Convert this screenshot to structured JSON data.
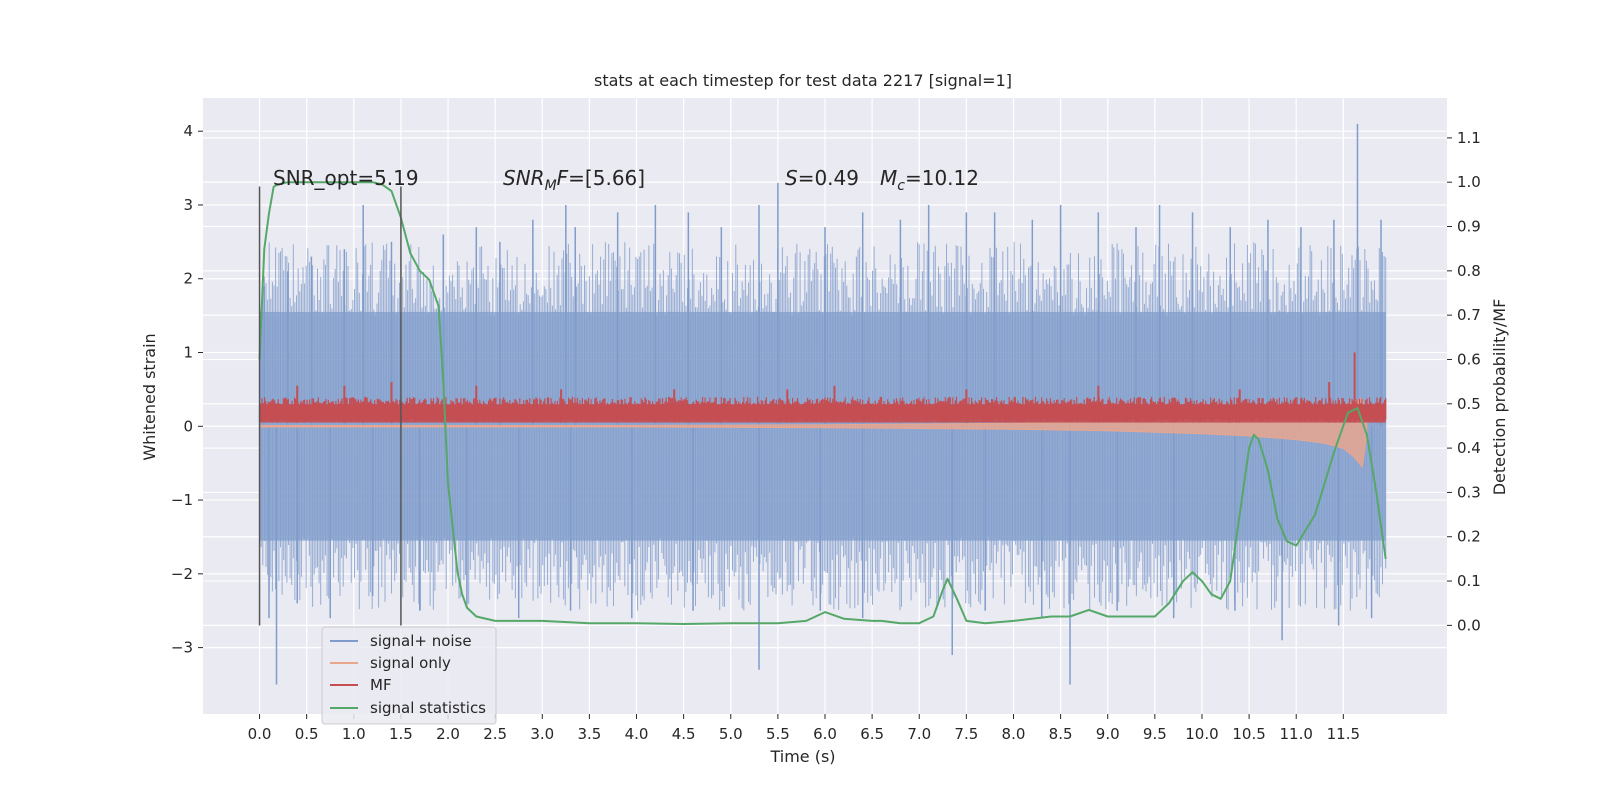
{
  "chart_data": {
    "type": "line",
    "title": "stats at each timestep for test data 2217 [signal=1]",
    "xlabel": "Time (s)",
    "ylabel_left": "Whitened strain",
    "ylabel_right": "Detection probability/MF",
    "xlim": [
      -0.6,
      12.6
    ],
    "ylim_left": [
      -3.9,
      4.45
    ],
    "ylim_right": [
      -0.2,
      1.19
    ],
    "x_ticks": [
      0.0,
      0.5,
      1.0,
      1.5,
      2.0,
      2.5,
      3.0,
      3.5,
      4.0,
      4.5,
      5.0,
      5.5,
      6.0,
      6.5,
      7.0,
      7.5,
      8.0,
      8.5,
      9.0,
      9.5,
      10.0,
      10.5,
      11.0,
      11.5
    ],
    "x_tick_labels": [
      "0.0",
      "0.5",
      "1.0",
      "1.5",
      "2.0",
      "2.5",
      "3.0",
      "3.5",
      "4.0",
      "4.5",
      "5.0",
      "5.5",
      "6.0",
      "6.5",
      "7.0",
      "7.5",
      "8.0",
      "8.5",
      "9.0",
      "9.5",
      "10.0",
      "10.5",
      "11.0",
      "11.5"
    ],
    "y_ticks_left": [
      -3,
      -2,
      -1,
      0,
      1,
      2,
      3,
      4
    ],
    "y_tick_labels_left": [
      "−3",
      "−2",
      "−1",
      "0",
      "1",
      "2",
      "3",
      "4"
    ],
    "y_ticks_right": [
      0.0,
      0.1,
      0.2,
      0.3,
      0.4,
      0.5,
      0.6,
      0.7,
      0.8,
      0.9,
      1.0,
      1.1
    ],
    "y_tick_labels_right": [
      "0.0",
      "0.1",
      "0.2",
      "0.3",
      "0.4",
      "0.5",
      "0.6",
      "0.7",
      "0.8",
      "0.9",
      "1.0",
      "1.1"
    ],
    "grid": true,
    "legend_placement": "lower-left",
    "annotations": {
      "snr_opt": "SNR_opt=5.19",
      "snr_mf_main": "SNR",
      "snr_mf_sub": "M",
      "snr_mf_rest": "F=[5.66]",
      "s_main": "S",
      "s_rest": "=0.49",
      "mc_main": "M",
      "mc_sub": "c",
      "mc_rest": "=10.12"
    },
    "vertical_markers": [
      0.0,
      1.5
    ],
    "series": [
      {
        "name": "signal+ noise",
        "color": "#7f9ccb",
        "axis": "left",
        "band_x": [
          0.0,
          11.95
        ],
        "band_low": -1.55,
        "band_high": 1.55,
        "spikes_up": [
          [
            0.05,
            1.9
          ],
          [
            0.3,
            2.1
          ],
          [
            0.55,
            2.3
          ],
          [
            0.9,
            2.4
          ],
          [
            1.1,
            3.0
          ],
          [
            1.4,
            2.5
          ],
          [
            1.95,
            2.6
          ],
          [
            2.3,
            2.7
          ],
          [
            2.55,
            2.5
          ],
          [
            2.9,
            2.8
          ],
          [
            3.25,
            3.0
          ],
          [
            3.35,
            2.7
          ],
          [
            3.8,
            2.9
          ],
          [
            4.2,
            3.0
          ],
          [
            4.55,
            2.9
          ],
          [
            4.9,
            2.7
          ],
          [
            5.3,
            3.0
          ],
          [
            5.5,
            3.3
          ],
          [
            6.0,
            2.7
          ],
          [
            6.4,
            2.9
          ],
          [
            6.8,
            2.8
          ],
          [
            7.1,
            3.0
          ],
          [
            7.5,
            2.9
          ],
          [
            7.8,
            2.9
          ],
          [
            8.2,
            2.8
          ],
          [
            8.5,
            3.0
          ],
          [
            8.9,
            2.9
          ],
          [
            9.3,
            2.7
          ],
          [
            9.55,
            3.0
          ],
          [
            9.9,
            2.9
          ],
          [
            10.3,
            2.7
          ],
          [
            10.7,
            2.8
          ],
          [
            11.05,
            2.7
          ],
          [
            11.4,
            2.8
          ],
          [
            11.65,
            4.1
          ],
          [
            11.9,
            2.8
          ]
        ],
        "spikes_down": [
          [
            0.1,
            -2.6
          ],
          [
            0.18,
            -3.5
          ],
          [
            0.4,
            -2.4
          ],
          [
            0.75,
            -2.6
          ],
          [
            1.2,
            -2.3
          ],
          [
            1.7,
            -2.5
          ],
          [
            2.2,
            -2.4
          ],
          [
            2.75,
            -2.6
          ],
          [
            3.3,
            -2.5
          ],
          [
            3.95,
            -2.6
          ],
          [
            4.6,
            -2.5
          ],
          [
            5.3,
            -3.3
          ],
          [
            5.95,
            -2.5
          ],
          [
            6.4,
            -2.6
          ],
          [
            7.35,
            -3.1
          ],
          [
            7.7,
            -2.5
          ],
          [
            8.3,
            -2.6
          ],
          [
            8.6,
            -3.5
          ],
          [
            9.1,
            -2.5
          ],
          [
            9.7,
            -2.6
          ],
          [
            10.35,
            -2.5
          ],
          [
            10.85,
            -2.9
          ],
          [
            11.45,
            -2.7
          ],
          [
            11.8,
            -2.6
          ]
        ]
      },
      {
        "name": "signal only",
        "color": "#e8a68f",
        "axis": "left",
        "x": [
          0.0,
          2.0,
          4.0,
          6.0,
          8.0,
          9.0,
          10.0,
          10.5,
          11.0,
          11.3,
          11.5,
          11.6,
          11.7,
          11.75
        ],
        "upper": [
          0.01,
          0.01,
          0.01,
          0.02,
          0.04,
          0.06,
          0.1,
          0.13,
          0.18,
          0.22,
          0.27,
          0.33,
          0.38,
          0.1
        ],
        "lower": [
          -0.01,
          -0.01,
          -0.01,
          -0.02,
          -0.04,
          -0.06,
          -0.1,
          -0.13,
          -0.18,
          -0.23,
          -0.3,
          -0.4,
          -0.55,
          -0.1
        ]
      },
      {
        "name": "MF",
        "color": "#c44e52",
        "axis": "left",
        "x_range": [
          0.0,
          11.95
        ],
        "base": 0.05,
        "typical_high": 0.4,
        "peaks": [
          [
            0.4,
            0.55
          ],
          [
            0.9,
            0.55
          ],
          [
            1.4,
            0.6
          ],
          [
            2.3,
            0.55
          ],
          [
            3.2,
            0.5
          ],
          [
            4.4,
            0.5
          ],
          [
            5.6,
            0.5
          ],
          [
            6.1,
            0.55
          ],
          [
            7.5,
            0.5
          ],
          [
            8.9,
            0.55
          ],
          [
            10.4,
            0.5
          ],
          [
            11.35,
            0.6
          ],
          [
            11.62,
            1.0
          ]
        ]
      },
      {
        "name": "signal statistics",
        "color": "#55a868",
        "axis": "right",
        "x": [
          0.0,
          0.05,
          0.1,
          0.15,
          0.2,
          0.3,
          0.5,
          0.8,
          1.0,
          1.2,
          1.3,
          1.4,
          1.5,
          1.6,
          1.7,
          1.8,
          1.9,
          1.95,
          2.0,
          2.1,
          2.15,
          2.2,
          2.3,
          2.5,
          3.0,
          3.5,
          4.0,
          4.5,
          5.0,
          5.5,
          5.8,
          6.0,
          6.2,
          6.5,
          6.6,
          6.8,
          7.0,
          7.15,
          7.25,
          7.3,
          7.4,
          7.5,
          7.7,
          8.0,
          8.4,
          8.6,
          8.8,
          9.0,
          9.5,
          9.65,
          9.8,
          9.9,
          10.0,
          10.1,
          10.2,
          10.3,
          10.4,
          10.5,
          10.55,
          10.6,
          10.7,
          10.8,
          10.9,
          11.0,
          11.2,
          11.4,
          11.55,
          11.65,
          11.75,
          11.85,
          11.95
        ],
        "y": [
          0.6,
          0.85,
          0.93,
          0.99,
          0.995,
          1.0,
          1.0,
          1.0,
          1.0,
          1.0,
          0.995,
          0.98,
          0.92,
          0.84,
          0.8,
          0.78,
          0.72,
          0.55,
          0.32,
          0.12,
          0.07,
          0.04,
          0.02,
          0.01,
          0.01,
          0.005,
          0.005,
          0.003,
          0.005,
          0.005,
          0.01,
          0.03,
          0.015,
          0.01,
          0.01,
          0.005,
          0.005,
          0.02,
          0.08,
          0.105,
          0.06,
          0.01,
          0.005,
          0.01,
          0.02,
          0.02,
          0.035,
          0.02,
          0.02,
          0.05,
          0.1,
          0.12,
          0.1,
          0.07,
          0.06,
          0.1,
          0.25,
          0.4,
          0.43,
          0.42,
          0.35,
          0.24,
          0.19,
          0.18,
          0.25,
          0.39,
          0.48,
          0.49,
          0.43,
          0.3,
          0.15
        ]
      }
    ]
  }
}
